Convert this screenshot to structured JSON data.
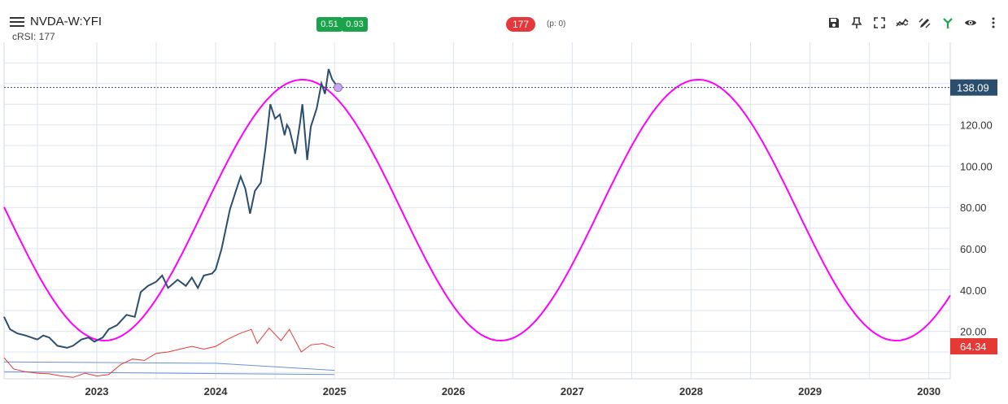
{
  "header": {
    "symbol": "NVDA-W:YFI",
    "subtitle": "cRSI: 177",
    "pill_left": "0.51",
    "pill_right": "0.93",
    "count_badge": "177",
    "p_value": "(p: 0)"
  },
  "toolbar": {
    "icons": [
      "save-icon",
      "pin-icon",
      "fullscreen-icon",
      "compare-icon",
      "draw-icon",
      "fork-icon",
      "eye-icon",
      "more-icon"
    ]
  },
  "colors": {
    "price_line": "#2b4d6e",
    "cycle_line": "#ff00ff",
    "indicator_line": "#e53935",
    "band_line": "#6b8fd6",
    "price_badge": "#2b4d6e",
    "indicator_badge": "#e53935",
    "pill_green": "#1aa34a",
    "pill_red": "#e5383b"
  },
  "chart_data": {
    "type": "line",
    "x_axis": {
      "ticks": [
        "2023",
        "2024",
        "2025",
        "2026",
        "2027",
        "2028",
        "2029",
        "2030"
      ],
      "range": [
        2022.22,
        2030.18
      ]
    },
    "y_axis": {
      "ticks": [
        "20.00",
        "40.00",
        "60.00",
        "80.00",
        "100.00",
        "120.00"
      ],
      "range": [
        -3,
        160
      ]
    },
    "current_price_label": "138.09",
    "current_price": 138.09,
    "indicator_label": "64.34",
    "series": [
      {
        "name": "",
        "role": "price",
        "points": [
          [
            2022.22,
            27
          ],
          [
            2022.27,
            21
          ],
          [
            2022.33,
            19
          ],
          [
            2022.4,
            18
          ],
          [
            2022.45,
            17
          ],
          [
            2022.5,
            16
          ],
          [
            2022.55,
            18
          ],
          [
            2022.6,
            17
          ],
          [
            2022.67,
            13
          ],
          [
            2022.75,
            12
          ],
          [
            2022.8,
            13
          ],
          [
            2022.87,
            16
          ],
          [
            2022.93,
            17
          ],
          [
            2022.98,
            15
          ],
          [
            2023.05,
            17
          ],
          [
            2023.1,
            21
          ],
          [
            2023.17,
            23
          ],
          [
            2023.25,
            28
          ],
          [
            2023.32,
            27
          ],
          [
            2023.37,
            39
          ],
          [
            2023.43,
            42
          ],
          [
            2023.5,
            44
          ],
          [
            2023.55,
            47
          ],
          [
            2023.6,
            41
          ],
          [
            2023.68,
            45
          ],
          [
            2023.75,
            42
          ],
          [
            2023.8,
            46
          ],
          [
            2023.85,
            41
          ],
          [
            2023.9,
            47
          ],
          [
            2023.97,
            48
          ],
          [
            2024.0,
            50
          ],
          [
            2024.05,
            60
          ],
          [
            2024.12,
            79
          ],
          [
            2024.17,
            88
          ],
          [
            2024.21,
            95
          ],
          [
            2024.25,
            89
          ],
          [
            2024.29,
            77
          ],
          [
            2024.33,
            88
          ],
          [
            2024.38,
            92
          ],
          [
            2024.42,
            109
          ],
          [
            2024.46,
            130
          ],
          [
            2024.5,
            123
          ],
          [
            2024.54,
            125
          ],
          [
            2024.58,
            115
          ],
          [
            2024.6,
            120
          ],
          [
            2024.62,
            118
          ],
          [
            2024.67,
            106
          ],
          [
            2024.71,
            121
          ],
          [
            2024.73,
            130
          ],
          [
            2024.77,
            103
          ],
          [
            2024.8,
            119
          ],
          [
            2024.85,
            128
          ],
          [
            2024.89,
            140
          ],
          [
            2024.92,
            135
          ],
          [
            2024.95,
            147
          ],
          [
            2024.98,
            142
          ],
          [
            2025.03,
            138.09
          ]
        ]
      },
      {
        "name": "",
        "role": "cycle",
        "center": 78.7,
        "amplitude": 63.2,
        "peak_x": 2024.73,
        "period_years": 3.33,
        "x_start": 2022.22,
        "x_end": 2030.18
      }
    ],
    "lower_panel": {
      "upper_band": [
        [
          2022.22,
          9
        ],
        [
          2024.0,
          8
        ],
        [
          2025.0,
          3
        ]
      ],
      "lower_band": [
        [
          2022.22,
          2
        ],
        [
          2025.0,
          0
        ]
      ],
      "indicator": [
        [
          2022.22,
          12
        ],
        [
          2022.3,
          4
        ],
        [
          2022.4,
          2
        ],
        [
          2022.5,
          1
        ],
        [
          2022.6,
          0.5
        ],
        [
          2022.7,
          -1
        ],
        [
          2022.8,
          -2
        ],
        [
          2022.9,
          1
        ],
        [
          2023.0,
          -1
        ],
        [
          2023.1,
          0
        ],
        [
          2023.2,
          7
        ],
        [
          2023.3,
          11
        ],
        [
          2023.4,
          10
        ],
        [
          2023.5,
          15
        ],
        [
          2023.6,
          16
        ],
        [
          2023.7,
          18
        ],
        [
          2023.8,
          20
        ],
        [
          2023.9,
          18
        ],
        [
          2024.0,
          20
        ],
        [
          2024.1,
          25
        ],
        [
          2024.2,
          29
        ],
        [
          2024.3,
          32
        ],
        [
          2024.35,
          22
        ],
        [
          2024.45,
          33
        ],
        [
          2024.55,
          24
        ],
        [
          2024.62,
          32
        ],
        [
          2024.72,
          16
        ],
        [
          2024.8,
          21
        ],
        [
          2024.9,
          22
        ],
        [
          2025.0,
          19
        ]
      ]
    }
  }
}
